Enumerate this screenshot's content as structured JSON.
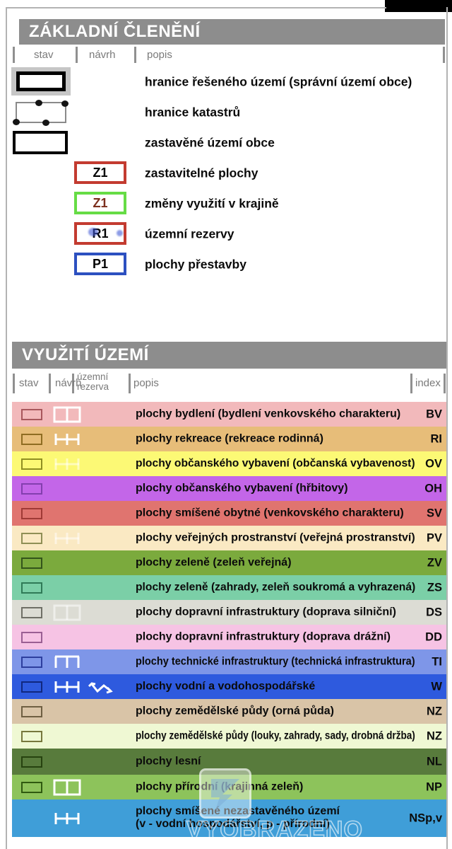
{
  "chrome": {
    "header_bg": "#8d8d8d",
    "frame_color": "#b3b3b3",
    "topbar_color": "#000000"
  },
  "basic": {
    "title": "ZÁKLADNÍ ČLENĚNÍ",
    "columns": [
      "stav",
      "návrh",
      "popis"
    ],
    "items": [
      {
        "icon": "solved-area-boundary",
        "label": "hranice řešeného území (správní území obce)"
      },
      {
        "icon": "cadastre-boundary",
        "label": "hranice katastrů"
      },
      {
        "icon": "built-up-boundary",
        "label": "zastavěné území obce"
      },
      {
        "icon": "code-box",
        "code": "Z1",
        "border_color": "#c33b30",
        "code_color": "#000000",
        "label": "zastavitelné plochy"
      },
      {
        "icon": "code-box",
        "code": "Z1",
        "border_color": "#66dc45",
        "code_color": "#7c2f1d",
        "label": "změny využití v krajině"
      },
      {
        "icon": "code-box",
        "code": "R1",
        "border_color": "#c33b30",
        "code_color": "#000000",
        "blue_marks": true,
        "label": "územní rezervy"
      },
      {
        "icon": "code-box",
        "code": "P1",
        "border_color": "#2c50c0",
        "code_color": "#000000",
        "label": "plochy přestavby"
      }
    ]
  },
  "use": {
    "title": "VYUŽITÍ ÚZEMÍ",
    "columns": {
      "stav": "stav",
      "navrh": "návrh",
      "rezerva_line1": "územní",
      "rezerva_line2": "rezerva",
      "popis": "popis",
      "index": "index"
    },
    "rows": [
      {
        "bg": "#f2b9bb",
        "outline": "#a8575c",
        "stav": true,
        "navrh": "divided-rect",
        "rezerva": null,
        "label": "plochy bydlení (bydlení venkovského charakteru)",
        "index": "BV"
      },
      {
        "bg": "#e7bd79",
        "outline": "#8f6d22",
        "stav": true,
        "navrh": "fence",
        "rezerva": null,
        "label": "plochy rekreace (rekreace rodinná)",
        "index": "RI"
      },
      {
        "bg": "#fcf975",
        "outline": "#8f8f22",
        "stav": true,
        "navrh": "fence-faint",
        "rezerva": null,
        "label": "plochy občanského vybavení (občanská vybavenost)",
        "index": "OV"
      },
      {
        "bg": "#c366e8",
        "outline": "#833fae",
        "stav": true,
        "navrh": null,
        "rezerva": null,
        "label": "plochy občanského vybavení (hřbitovy)",
        "index": "OH"
      },
      {
        "bg": "#e0746f",
        "outline": "#a03a36",
        "stav": true,
        "navrh": null,
        "rezerva": null,
        "label": "plochy smíšené obytné (venkovského charakteru)",
        "index": "SV"
      },
      {
        "bg": "#fae9c3",
        "outline": "#8f8f55",
        "stav": true,
        "navrh": "fence-faint",
        "rezerva": null,
        "label": "plochy veřejných prostranství (veřejná prostranství)",
        "index": "PV"
      },
      {
        "bg": "#7baa3d",
        "outline": "#33541b",
        "stav": true,
        "navrh": null,
        "rezerva": null,
        "label": "plochy zeleně (zeleň veřejná)",
        "index": "ZV"
      },
      {
        "bg": "#7bcfa7",
        "outline": "#2f7a57",
        "stav": true,
        "navrh": null,
        "rezerva": null,
        "label": "plochy zeleně (zahrady, zeleň soukromá a vyhrazená)",
        "index": "ZS"
      },
      {
        "bg": "#dcdcd4",
        "outline": "#6f6f66",
        "stav": true,
        "navrh": "divided-rect-faint",
        "rezerva": null,
        "label": "plochy dopravní infrastruktury (doprava silniční)",
        "index": "DS"
      },
      {
        "bg": "#f6c3e4",
        "outline": "#9a5f93",
        "stav": true,
        "navrh": null,
        "rezerva": null,
        "label": "plochy dopravní infrastruktury (doprava drážní)",
        "index": "DD"
      },
      {
        "bg": "#7e96e8",
        "outline": "#2d3f9e",
        "stav": true,
        "navrh": "comb",
        "rezerva": null,
        "label": "plochy technické infrastruktury (technická infrastruktura)",
        "index": "TI"
      },
      {
        "bg": "#2e5ade",
        "outline": "#10277f",
        "stav": true,
        "navrh": "fence",
        "rezerva": "zigzag-arrows",
        "label": "plochy vodní a vodohospodářské",
        "index": "W"
      },
      {
        "bg": "#d9c4a7",
        "outline": "#6f5f42",
        "stav": true,
        "navrh": null,
        "rezerva": null,
        "label": "plochy zemědělské půdy (orná půda)",
        "index": "NZ"
      },
      {
        "bg": "#eff8d3",
        "outline": "#77773d",
        "stav": true,
        "navrh": null,
        "rezerva": null,
        "label": "plochy zemědělské půdy (louky, zahrady, sady, drobná držba)",
        "index": "NZ"
      },
      {
        "bg": "#587b3c",
        "outline": "#26420f",
        "stav": true,
        "navrh": null,
        "rezerva": null,
        "label": "plochy lesní",
        "index": "NL"
      },
      {
        "bg": "#8dc35b",
        "outline": "#2f5a10",
        "stav": true,
        "navrh": "divided-rect",
        "rezerva": null,
        "label": "plochy přírodní (krajinná zeleň)",
        "index": "NP"
      },
      {
        "bg": "#3f9ed8",
        "outline": null,
        "stav": false,
        "navrh": "fence",
        "rezerva": null,
        "label": "plochy smíšené nezastavěného území",
        "label2": "(v - vodní hospodářství, p - přírodní)",
        "index": "NSp,v"
      }
    ]
  },
  "watermark": {
    "text": "VYOBRAZENO"
  }
}
